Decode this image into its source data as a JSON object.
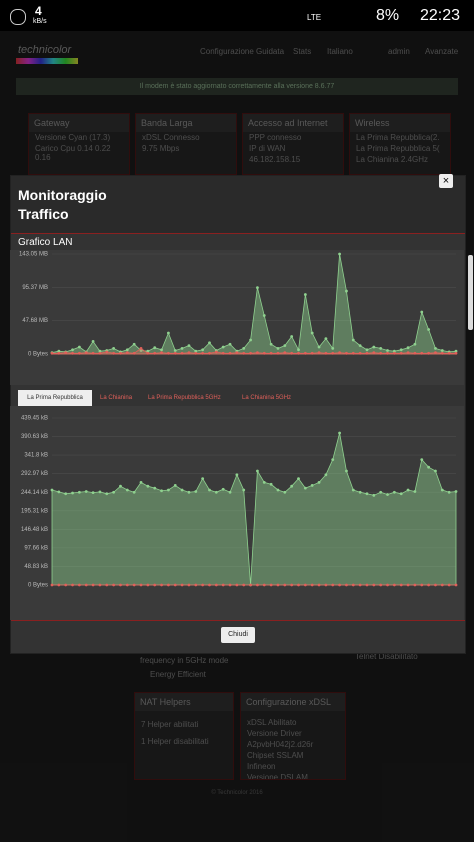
{
  "status_bar": {
    "speed": "4",
    "speed_unit": "kB/s",
    "network": "LTE",
    "battery": "8%",
    "time": "22:23"
  },
  "background": {
    "brand": "technicolor",
    "menu": [
      "Configurazione Guidata",
      "Stats",
      "Italiano",
      "admin",
      "Avanzate"
    ],
    "banner": "Il modem è stato aggiornato correttamente alla versione 8.6.77",
    "cards": [
      {
        "title": "Gateway",
        "lines": [
          "Versione Cyan (17.3)",
          "Carico Cpu 0.14 0.22 0.16"
        ]
      },
      {
        "title": "Banda Larga",
        "lines": [
          "xDSL Connesso",
          "9.75 Mbps"
        ]
      },
      {
        "title": "Accesso ad Internet",
        "lines": [
          "PPP connesso",
          "IP di WAN",
          "46.182.158.15"
        ]
      },
      {
        "title": "Wireless",
        "lines": [
          "La Prima Repubblica(2.",
          "La Prima Repubblica 5(",
          "La Chianina 2.4GHz"
        ]
      }
    ],
    "lower": [
      "frequency in 5GHz mode",
      "Energy Efficient",
      "Telnet Disabilitato"
    ],
    "nat": {
      "title": "NAT Helpers",
      "lines": [
        "7 Helper abilitati",
        "1 Helper disabilitati"
      ]
    },
    "xdsl": {
      "title": "Configurazione xDSL",
      "lines": [
        "xDSL Abilitato",
        "Versione Driver",
        "A2pvbH042j2.d26r",
        "Chipset SSLAM",
        "Infineon",
        "Versione DSLAM"
      ]
    },
    "footer": "© Technicolor 2016"
  },
  "modal": {
    "title": "Monitoraggio Traffico",
    "close": "×",
    "section": "Grafico LAN",
    "tabs": [
      "La Prima Repubblica",
      "La Chianina",
      "La Prima Repubblica 5GHz",
      "La Chianina 5GHz"
    ],
    "button": "Chiudi",
    "charts": [
      {
        "type": "area",
        "ylim": [
          0,
          143.05
        ],
        "yticks": [
          {
            "value": 0,
            "label": "0 Bytes"
          },
          {
            "value": 47.68,
            "label": "47.68 MB"
          },
          {
            "value": 95.37,
            "label": "95.37 MB"
          },
          {
            "value": 143.05,
            "label": "143.05 MB"
          }
        ],
        "series": [
          {
            "color": "#8fd18f",
            "values": [
              2,
              4,
              3,
              6,
              10,
              3,
              18,
              4,
              5,
              8,
              3,
              6,
              14,
              5,
              4,
              9,
              6,
              30,
              5,
              8,
              12,
              4,
              6,
              16,
              5,
              10,
              14,
              4,
              8,
              20,
              95,
              55,
              14,
              8,
              12,
              25,
              6,
              85,
              30,
              10,
              22,
              8,
              143,
              90,
              20,
              12,
              6,
              10,
              8,
              5,
              4,
              6,
              9,
              14,
              60,
              35,
              8,
              5,
              3,
              4
            ]
          },
          {
            "color": "#e0605a",
            "values": [
              1,
              1,
              2,
              1,
              1,
              2,
              1,
              1,
              3,
              1,
              1,
              2,
              1,
              8,
              1,
              1,
              2,
              1,
              1,
              1,
              2,
              1,
              1,
              1,
              3,
              1,
              1,
              2,
              1,
              1,
              2,
              1,
              1,
              1,
              2,
              1,
              1,
              1,
              1,
              2,
              1,
              1,
              2,
              1,
              1,
              1,
              1,
              2,
              1,
              1,
              1,
              1,
              2,
              1,
              1,
              1,
              2,
              1,
              1,
              1
            ]
          }
        ]
      },
      {
        "type": "area",
        "ylim": [
          0,
          439.45
        ],
        "yticks": [
          {
            "value": 0,
            "label": "0 Bytes"
          },
          {
            "value": 48.83,
            "label": "48.83 kB"
          },
          {
            "value": 97.66,
            "label": "97.66 kB"
          },
          {
            "value": 146.48,
            "label": "146.48 kB"
          },
          {
            "value": 195.31,
            "label": "195.31 kB"
          },
          {
            "value": 244.14,
            "label": "244.14 kB"
          },
          {
            "value": 292.97,
            "label": "292.97 kB"
          },
          {
            "value": 341.8,
            "label": "341.8 kB"
          },
          {
            "value": 390.63,
            "label": "390.63 kB"
          },
          {
            "value": 439.45,
            "label": "439.45 kB"
          }
        ],
        "series": [
          {
            "color": "#8fd18f",
            "values": [
              250,
              245,
              240,
              242,
              244,
              246,
              243,
              245,
              240,
              244,
              260,
              250,
              244,
              270,
              260,
              255,
              248,
              250,
              262,
              250,
              244,
              246,
              280,
              250,
              244,
              252,
              244,
              290,
              250,
              0,
              300,
              270,
              265,
              250,
              244,
              260,
              280,
              255,
              262,
              270,
              290,
              330,
              400,
              300,
              250,
              244,
              240,
              236,
              244,
              238,
              244,
              240,
              250,
              246,
              330,
              310,
              300,
              250,
              244,
              246
            ]
          },
          {
            "color": "#e0605a",
            "values": [
              0,
              0,
              0,
              0,
              0,
              0,
              0,
              0,
              0,
              0,
              0,
              0,
              0,
              0,
              0,
              0,
              0,
              0,
              0,
              0,
              0,
              0,
              0,
              0,
              0,
              0,
              0,
              0,
              0,
              0,
              0,
              0,
              0,
              0,
              0,
              0,
              0,
              0,
              0,
              0,
              0,
              0,
              0,
              0,
              0,
              0,
              0,
              0,
              0,
              0,
              0,
              0,
              0,
              0,
              0,
              0,
              0,
              0,
              0,
              0
            ]
          }
        ]
      }
    ]
  }
}
